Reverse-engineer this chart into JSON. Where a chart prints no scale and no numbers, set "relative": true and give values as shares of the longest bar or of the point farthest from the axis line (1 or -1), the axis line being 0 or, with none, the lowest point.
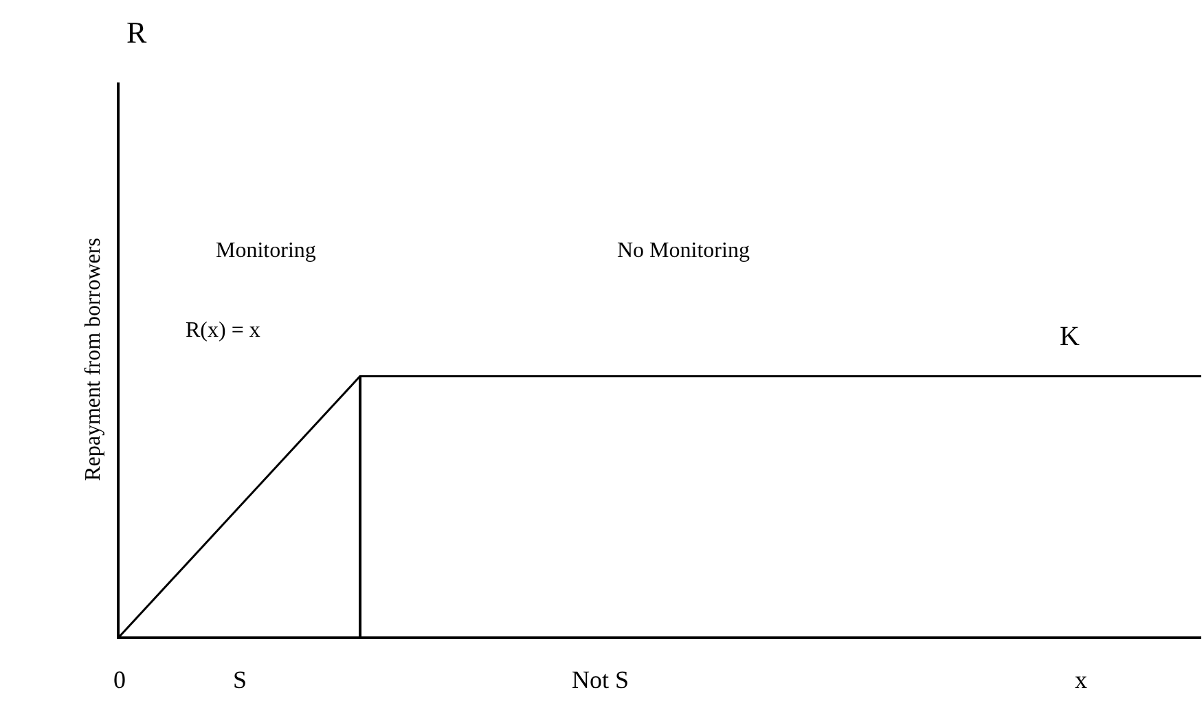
{
  "chart_data": {
    "type": "line",
    "relative": true,
    "ylabel": "Repayment from borrowers",
    "categories": [
      "0",
      "S",
      null,
      null,
      "Not S",
      null,
      null,
      null,
      "x",
      null
    ],
    "series": [
      {
        "color": "#000000",
        "values": [
          0,
          0.5,
          1,
          1,
          1,
          1,
          1,
          1,
          1,
          1
        ]
      },
      {
        "type": "bar",
        "color": "#000000",
        "values": [
          null,
          null,
          1,
          null,
          null,
          null,
          null,
          null,
          null,
          null
        ]
      }
    ],
    "annotations": [
      "R",
      "Monitoring",
      "No Monitoring",
      "R(x) = x",
      "K"
    ],
    "marker": "none",
    "line_style": "solid"
  }
}
